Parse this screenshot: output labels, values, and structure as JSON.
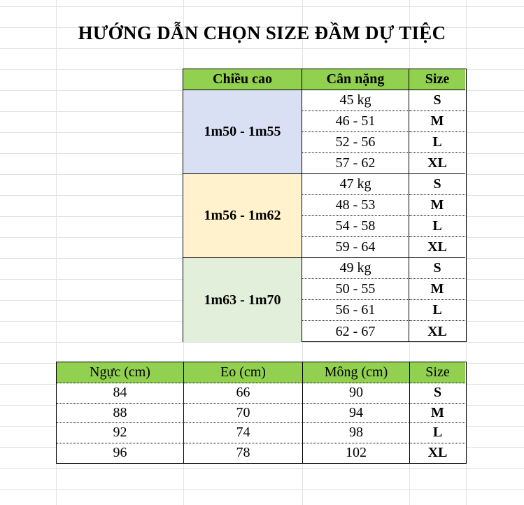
{
  "title": "HƯỚNG DẪN CHỌN SIZE ĐẦM DỰ TIỆC",
  "height_table": {
    "headers": [
      "Chiều cao",
      "Cân nặng",
      "Size"
    ],
    "groups": [
      {
        "height": "1m50  - 1m55",
        "color": "#dae0f3",
        "rows": [
          [
            "45 kg",
            "S"
          ],
          [
            "46 - 51",
            "M"
          ],
          [
            "52 - 56",
            "L"
          ],
          [
            "57 - 62",
            "XL"
          ]
        ]
      },
      {
        "height": "1m56  - 1m62",
        "color": "#fff2cc",
        "rows": [
          [
            "47 kg",
            "S"
          ],
          [
            "48 - 53",
            "M"
          ],
          [
            "54 - 58",
            "L"
          ],
          [
            "59 - 64",
            "XL"
          ]
        ]
      },
      {
        "height": "1m63  - 1m70",
        "color": "#e2efda",
        "rows": [
          [
            "49 kg",
            "S"
          ],
          [
            "50 - 55",
            "M"
          ],
          [
            "56 - 61",
            "L"
          ],
          [
            "62 - 67",
            "XL"
          ]
        ]
      }
    ]
  },
  "measure_table": {
    "headers": [
      "Ngực (cm)",
      "Eo (cm)",
      "Mông (cm)",
      "Size"
    ],
    "rows": [
      [
        "84",
        "66",
        "90",
        "S"
      ],
      [
        "88",
        "70",
        "94",
        "M"
      ],
      [
        "92",
        "74",
        "98",
        "L"
      ],
      [
        "96",
        "78",
        "102",
        "XL"
      ]
    ]
  },
  "colors": {
    "header_green": "#92d050"
  }
}
